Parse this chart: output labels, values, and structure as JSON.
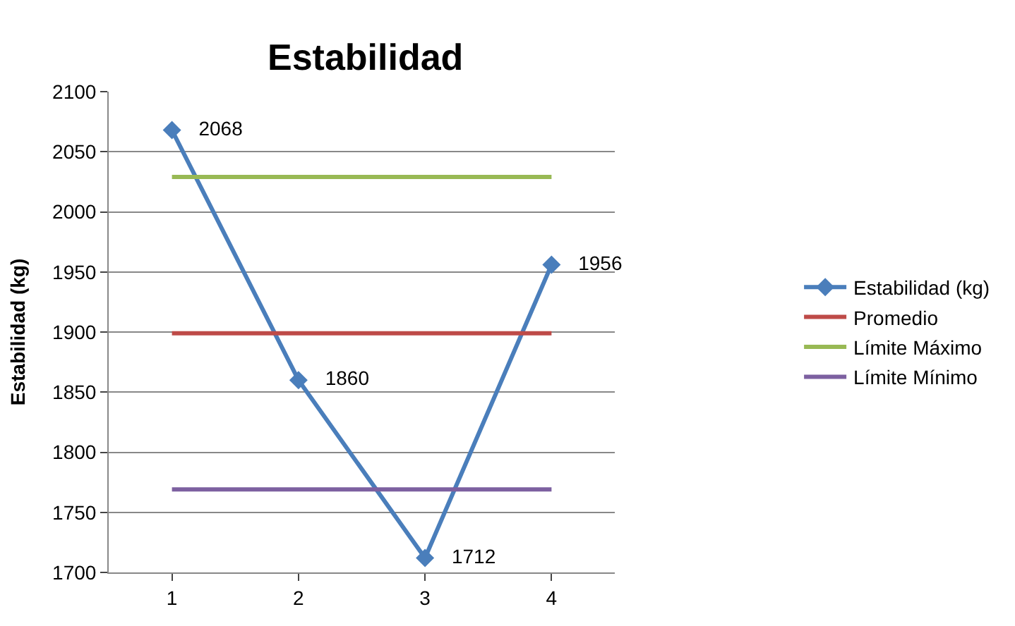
{
  "chart_data": {
    "type": "line",
    "title": "Estabilidad",
    "ylabel": "Estabilidad (kg)",
    "categories": [
      "1",
      "2",
      "3",
      "4"
    ],
    "series": [
      {
        "name": "Estabilidad (kg)",
        "color": "#4a7ebb",
        "values": [
          2068,
          1860,
          1712,
          1956
        ],
        "marker": "diamond",
        "value_labels": [
          "2068",
          "1860",
          "1712",
          "1956"
        ]
      },
      {
        "name": "Promedio",
        "color": "#be4b48",
        "values": [
          1899,
          1899,
          1899,
          1899
        ],
        "marker": "none"
      },
      {
        "name": "Límite Máximo",
        "color": "#98b954",
        "values": [
          2029,
          2029,
          2029,
          2029
        ],
        "marker": "none"
      },
      {
        "name": "Límite Mínimo",
        "color": "#7d60a0",
        "values": [
          1769,
          1769,
          1769,
          1769
        ],
        "marker": "none"
      }
    ],
    "ylim": [
      1700,
      2100
    ],
    "yticks": [
      1700,
      1750,
      1800,
      1850,
      1900,
      1950,
      2000,
      2050,
      2100
    ],
    "grid": "y",
    "legend": "right",
    "line_style": "solid"
  }
}
